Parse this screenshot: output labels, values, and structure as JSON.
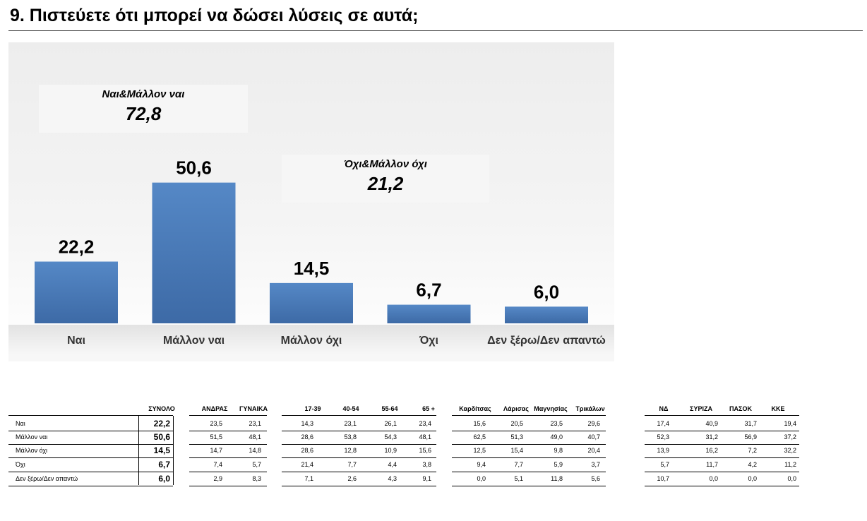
{
  "title": "9. Πιστεύετε ότι μπορεί να δώσει λύσεις σε αυτά;",
  "callouts": [
    {
      "label": "Ναι&Μάλλον ναι",
      "value": "72,8"
    },
    {
      "label": "Όχι&Μάλλον όχι",
      "value": "21,2"
    }
  ],
  "chart_data": {
    "type": "bar",
    "categories": [
      "Ναι",
      "Μάλλον ναι",
      "Μάλλον όχι",
      "Όχι",
      "Δεν ξέρω/Δεν απαντώ"
    ],
    "values": [
      22.2,
      50.6,
      14.5,
      6.7,
      6.0
    ],
    "value_labels": [
      "22,2",
      "50,6",
      "14,5",
      "6,7",
      "6,0"
    ],
    "bar_color": "#4a7ab8"
  },
  "table": {
    "total_header": "ΣΥΝΟΛΟ",
    "groups": [
      [
        "ΑΝΔΡΑΣ",
        "ΓΥΝΑΙΚΑ"
      ],
      [
        "17-39",
        "40-54",
        "55-64",
        "65 +"
      ],
      [
        "Καρδίτσας",
        "Λάρισας",
        "Μαγνησίας",
        "Τρικάλων"
      ],
      [
        "ΝΔ",
        "ΣΥΡΙΖΑ",
        "ΠΑΣΟΚ",
        "ΚΚΕ"
      ]
    ],
    "rows": [
      {
        "label": "Ναι",
        "total": "22,2",
        "values": [
          [
            "23,5",
            "23,1"
          ],
          [
            "14,3",
            "23,1",
            "26,1",
            "23,4"
          ],
          [
            "15,6",
            "20,5",
            "23,5",
            "29,6"
          ],
          [
            "17,4",
            "40,9",
            "31,7",
            "19,4"
          ]
        ]
      },
      {
        "label": "Μάλλον ναι",
        "total": "50,6",
        "values": [
          [
            "51,5",
            "48,1"
          ],
          [
            "28,6",
            "53,8",
            "54,3",
            "48,1"
          ],
          [
            "62,5",
            "51,3",
            "49,0",
            "40,7"
          ],
          [
            "52,3",
            "31,2",
            "56,9",
            "37,2"
          ]
        ]
      },
      {
        "label": "Μάλλον όχι",
        "total": "14,5",
        "values": [
          [
            "14,7",
            "14,8"
          ],
          [
            "28,6",
            "12,8",
            "10,9",
            "15,6"
          ],
          [
            "12,5",
            "15,4",
            "9,8",
            "20,4"
          ],
          [
            "13,9",
            "16,2",
            "7,2",
            "32,2"
          ]
        ]
      },
      {
        "label": "Όχι",
        "total": "6,7",
        "values": [
          [
            "7,4",
            "5,7"
          ],
          [
            "21,4",
            "7,7",
            "4,4",
            "3,8"
          ],
          [
            "9,4",
            "7,7",
            "5,9",
            "3,7"
          ],
          [
            "5,7",
            "11,7",
            "4,2",
            "11,2"
          ]
        ]
      },
      {
        "label": "Δεν ξέρω/Δεν απαντώ",
        "total": "6,0",
        "values": [
          [
            "2,9",
            "8,3"
          ],
          [
            "7,1",
            "2,6",
            "4,3",
            "9,1"
          ],
          [
            "0,0",
            "5,1",
            "11,8",
            "5,6"
          ],
          [
            "10,7",
            "0,0",
            "0,0",
            "0,0"
          ]
        ]
      }
    ]
  }
}
